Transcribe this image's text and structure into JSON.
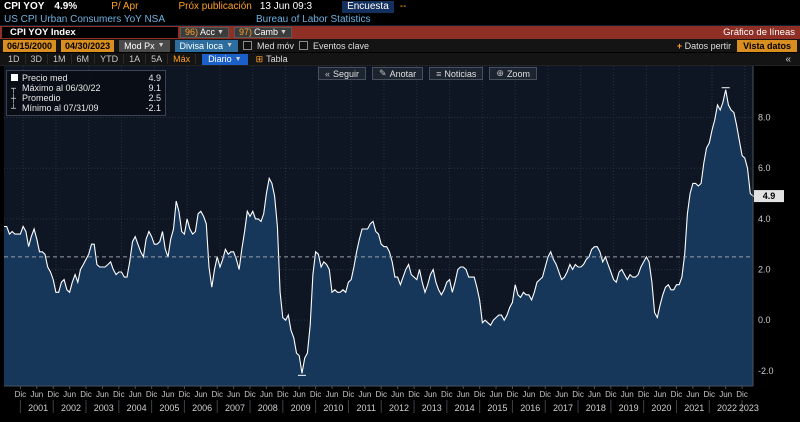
{
  "header": {
    "ticker": "CPI YOY",
    "last_value": "4.9%",
    "period": "P/ Apr",
    "next_pub_label": "Próx publicación",
    "next_pub_value": "13 Jun 09:3",
    "survey_label": "Encuesta",
    "survey_value": "--",
    "security": "US CPI Urban Consumers YoY NSA",
    "source": "Bureau of Labor Statistics"
  },
  "redbar": {
    "security_field": "CPI YOY Index",
    "acc_num": "96)",
    "acc_label": "Acc",
    "camb_num": "97)",
    "camb_label": "Camb",
    "right_label": "Gráfico de líneas"
  },
  "toolbar": {
    "date_from": "06/15/2000",
    "date_to": "04/30/2023",
    "mod_px": "Mod Px",
    "currency": "Divisa loca",
    "mov_avg": "Med móv",
    "key_events": "Eventos clave",
    "add_data": "Datos pertir",
    "view_data": "Vista datos"
  },
  "periodbar": {
    "ranges": [
      "1D",
      "3D",
      "1M",
      "6M",
      "YTD",
      "1A",
      "5A",
      "Máx"
    ],
    "freq": "Diario",
    "table": "Tabla"
  },
  "chart_buttons": [
    {
      "icon": "«",
      "label": "Seguir"
    },
    {
      "icon": "✎",
      "label": "Anotar"
    },
    {
      "icon": "≡",
      "label": "Noticias"
    },
    {
      "icon": "⊕",
      "label": "Zoom"
    }
  ],
  "legend": {
    "price_label": "Precio med",
    "price_value": "4.9",
    "max_icon": "┬",
    "max_label": "Máximo al 06/30/22",
    "max_value": "9.1",
    "avg_icon": "┼",
    "avg_label": "Promedio",
    "avg_value": "2.5",
    "min_icon": "┴",
    "min_label": "Mínimo al 07/31/09",
    "min_value": "-2.1"
  },
  "colors": {
    "amber": "#ffa028",
    "orange_field": "#d98e20",
    "cyan": "#6cb2e2",
    "red_bar": "#8f2f25",
    "blue": "#1b5fc8",
    "chart_bg": "#0e1523",
    "area_fill": "#16365a",
    "line": "#ffffff",
    "grid": "#2a3240"
  },
  "chart_data": {
    "type": "area",
    "title": "US CPI Urban Consumers YoY NSA",
    "start_month": "2000-06",
    "end_month": "2023-04",
    "ylim": [
      -2.6,
      9.8
    ],
    "y_ticks": [
      -2.0,
      0.0,
      2.0,
      4.0,
      6.0,
      8.0
    ],
    "average": 2.5,
    "last_value": 4.9,
    "max": {
      "date": "06/30/22",
      "value": 9.1
    },
    "min": {
      "date": "07/31/09",
      "value": -2.1
    },
    "x_year_labels": [
      "2001",
      "2002",
      "2003",
      "2004",
      "2005",
      "2006",
      "2007",
      "2008",
      "2009",
      "2010",
      "2011",
      "2012",
      "2013",
      "2014",
      "2015",
      "2016",
      "2017",
      "2018",
      "2019",
      "2020",
      "2021",
      "2022",
      "2023"
    ],
    "values": [
      3.7,
      3.7,
      3.4,
      3.5,
      3.4,
      3.4,
      3.4,
      3.7,
      3.5,
      2.9,
      3.3,
      3.6,
      3.2,
      2.7,
      2.7,
      2.6,
      2.1,
      1.9,
      1.6,
      1.1,
      1.1,
      1.5,
      1.6,
      1.2,
      1.1,
      1.5,
      1.8,
      1.5,
      2.0,
      2.2,
      2.4,
      2.6,
      3.0,
      3.0,
      2.2,
      2.1,
      2.1,
      2.1,
      2.2,
      2.3,
      2.0,
      1.8,
      1.9,
      1.9,
      1.7,
      1.7,
      2.3,
      3.1,
      3.3,
      3.0,
      2.7,
      2.5,
      3.2,
      3.5,
      3.3,
      3.0,
      3.0,
      3.1,
      3.5,
      2.8,
      2.5,
      3.2,
      3.6,
      4.7,
      4.3,
      3.5,
      3.4,
      4.0,
      3.6,
      3.4,
      3.5,
      4.2,
      4.3,
      4.1,
      3.8,
      2.1,
      1.3,
      2.0,
      2.5,
      2.1,
      2.4,
      2.8,
      2.6,
      2.7,
      2.7,
      2.4,
      2.0,
      2.8,
      3.5,
      4.3,
      4.1,
      4.3,
      4.0,
      4.0,
      3.9,
      4.2,
      5.0,
      5.6,
      5.4,
      4.9,
      3.7,
      1.1,
      0.1,
      0.0,
      0.2,
      -0.4,
      -0.7,
      -1.3,
      -1.4,
      -2.1,
      -1.5,
      -1.3,
      -0.2,
      1.8,
      2.7,
      2.6,
      2.1,
      2.3,
      2.2,
      2.0,
      1.1,
      1.2,
      1.1,
      1.1,
      1.2,
      1.1,
      1.5,
      1.6,
      2.1,
      2.7,
      3.2,
      3.6,
      3.6,
      3.6,
      3.8,
      3.9,
      3.5,
      3.4,
      3.0,
      2.9,
      2.9,
      2.7,
      2.3,
      1.7,
      1.7,
      1.4,
      1.7,
      2.0,
      2.2,
      1.8,
      1.7,
      1.6,
      2.0,
      1.5,
      1.1,
      1.4,
      1.8,
      2.0,
      1.5,
      1.2,
      1.0,
      1.2,
      1.5,
      1.6,
      1.1,
      1.5,
      2.0,
      2.1,
      2.1,
      2.0,
      1.7,
      1.7,
      1.7,
      1.3,
      0.8,
      -0.1,
      0.0,
      -0.1,
      -0.2,
      0.0,
      0.1,
      0.2,
      0.2,
      0.0,
      0.2,
      0.5,
      0.7,
      1.4,
      1.0,
      0.9,
      1.1,
      1.0,
      1.0,
      0.8,
      1.1,
      1.5,
      1.6,
      1.7,
      2.1,
      2.5,
      2.7,
      2.4,
      2.2,
      1.9,
      1.6,
      1.7,
      1.9,
      2.2,
      2.0,
      2.2,
      2.1,
      2.1,
      2.2,
      2.4,
      2.5,
      2.8,
      2.9,
      2.9,
      2.7,
      2.3,
      2.5,
      2.2,
      1.9,
      1.6,
      1.5,
      1.9,
      2.0,
      1.8,
      1.6,
      1.8,
      1.7,
      1.7,
      1.8,
      2.1,
      2.3,
      2.5,
      2.3,
      1.5,
      0.3,
      0.1,
      0.6,
      1.0,
      1.3,
      1.4,
      1.2,
      1.2,
      1.4,
      1.4,
      1.7,
      2.6,
      4.2,
      5.0,
      5.4,
      5.4,
      5.3,
      5.4,
      6.2,
      6.8,
      7.0,
      7.5,
      7.9,
      8.5,
      8.3,
      8.6,
      9.1,
      8.5,
      8.3,
      8.2,
      7.7,
      7.1,
      6.5,
      6.4,
      6.0,
      5.0,
      4.9
    ]
  }
}
